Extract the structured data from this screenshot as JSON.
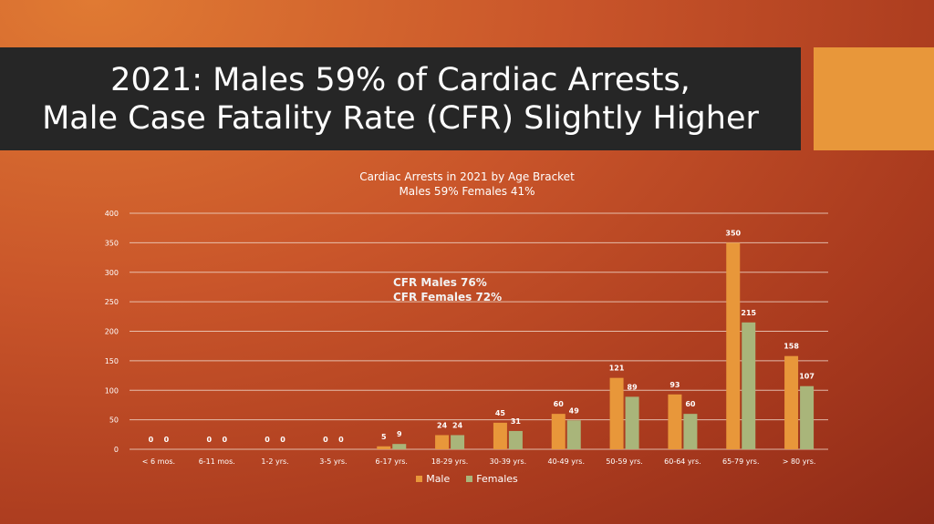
{
  "slide": {
    "title_line1": "2021: Males 59% of Cardiac Arrests,",
    "title_line2": "Male Case Fatality Rate (CFR) Slightly Higher",
    "cfr_line1": "CFR Males 76%",
    "cfr_line2": "CFR Females 72%"
  },
  "colors": {
    "male": "#e8973a",
    "female": "#a9b57a",
    "title_bar": "#262626",
    "accent_box": "#e8973a"
  },
  "chart_data": {
    "type": "bar",
    "title": "Cardiac Arrests in 2021 by Age Bracket",
    "subtitle": "Males 59% Females 41%",
    "categories": [
      "< 6 mos.",
      "6-11 mos.",
      "1-2 yrs.",
      "3-5 yrs.",
      "6-17 yrs.",
      "18-29 yrs.",
      "30-39 yrs.",
      "40-49 yrs.",
      "50-59 yrs.",
      "60-64 yrs.",
      "65-79 yrs.",
      "> 80 yrs."
    ],
    "series": [
      {
        "name": "Male",
        "values": [
          0,
          0,
          0,
          0,
          5,
          24,
          45,
          60,
          121,
          93,
          350,
          158
        ]
      },
      {
        "name": "Females",
        "values": [
          0,
          0,
          0,
          0,
          9,
          24,
          31,
          49,
          89,
          60,
          215,
          107
        ]
      }
    ],
    "ylim": [
      0,
      400
    ],
    "yticks": [
      0,
      50,
      100,
      150,
      200,
      250,
      300,
      350,
      400
    ],
    "grid": true,
    "legend": "bottom",
    "data_labels": true
  }
}
